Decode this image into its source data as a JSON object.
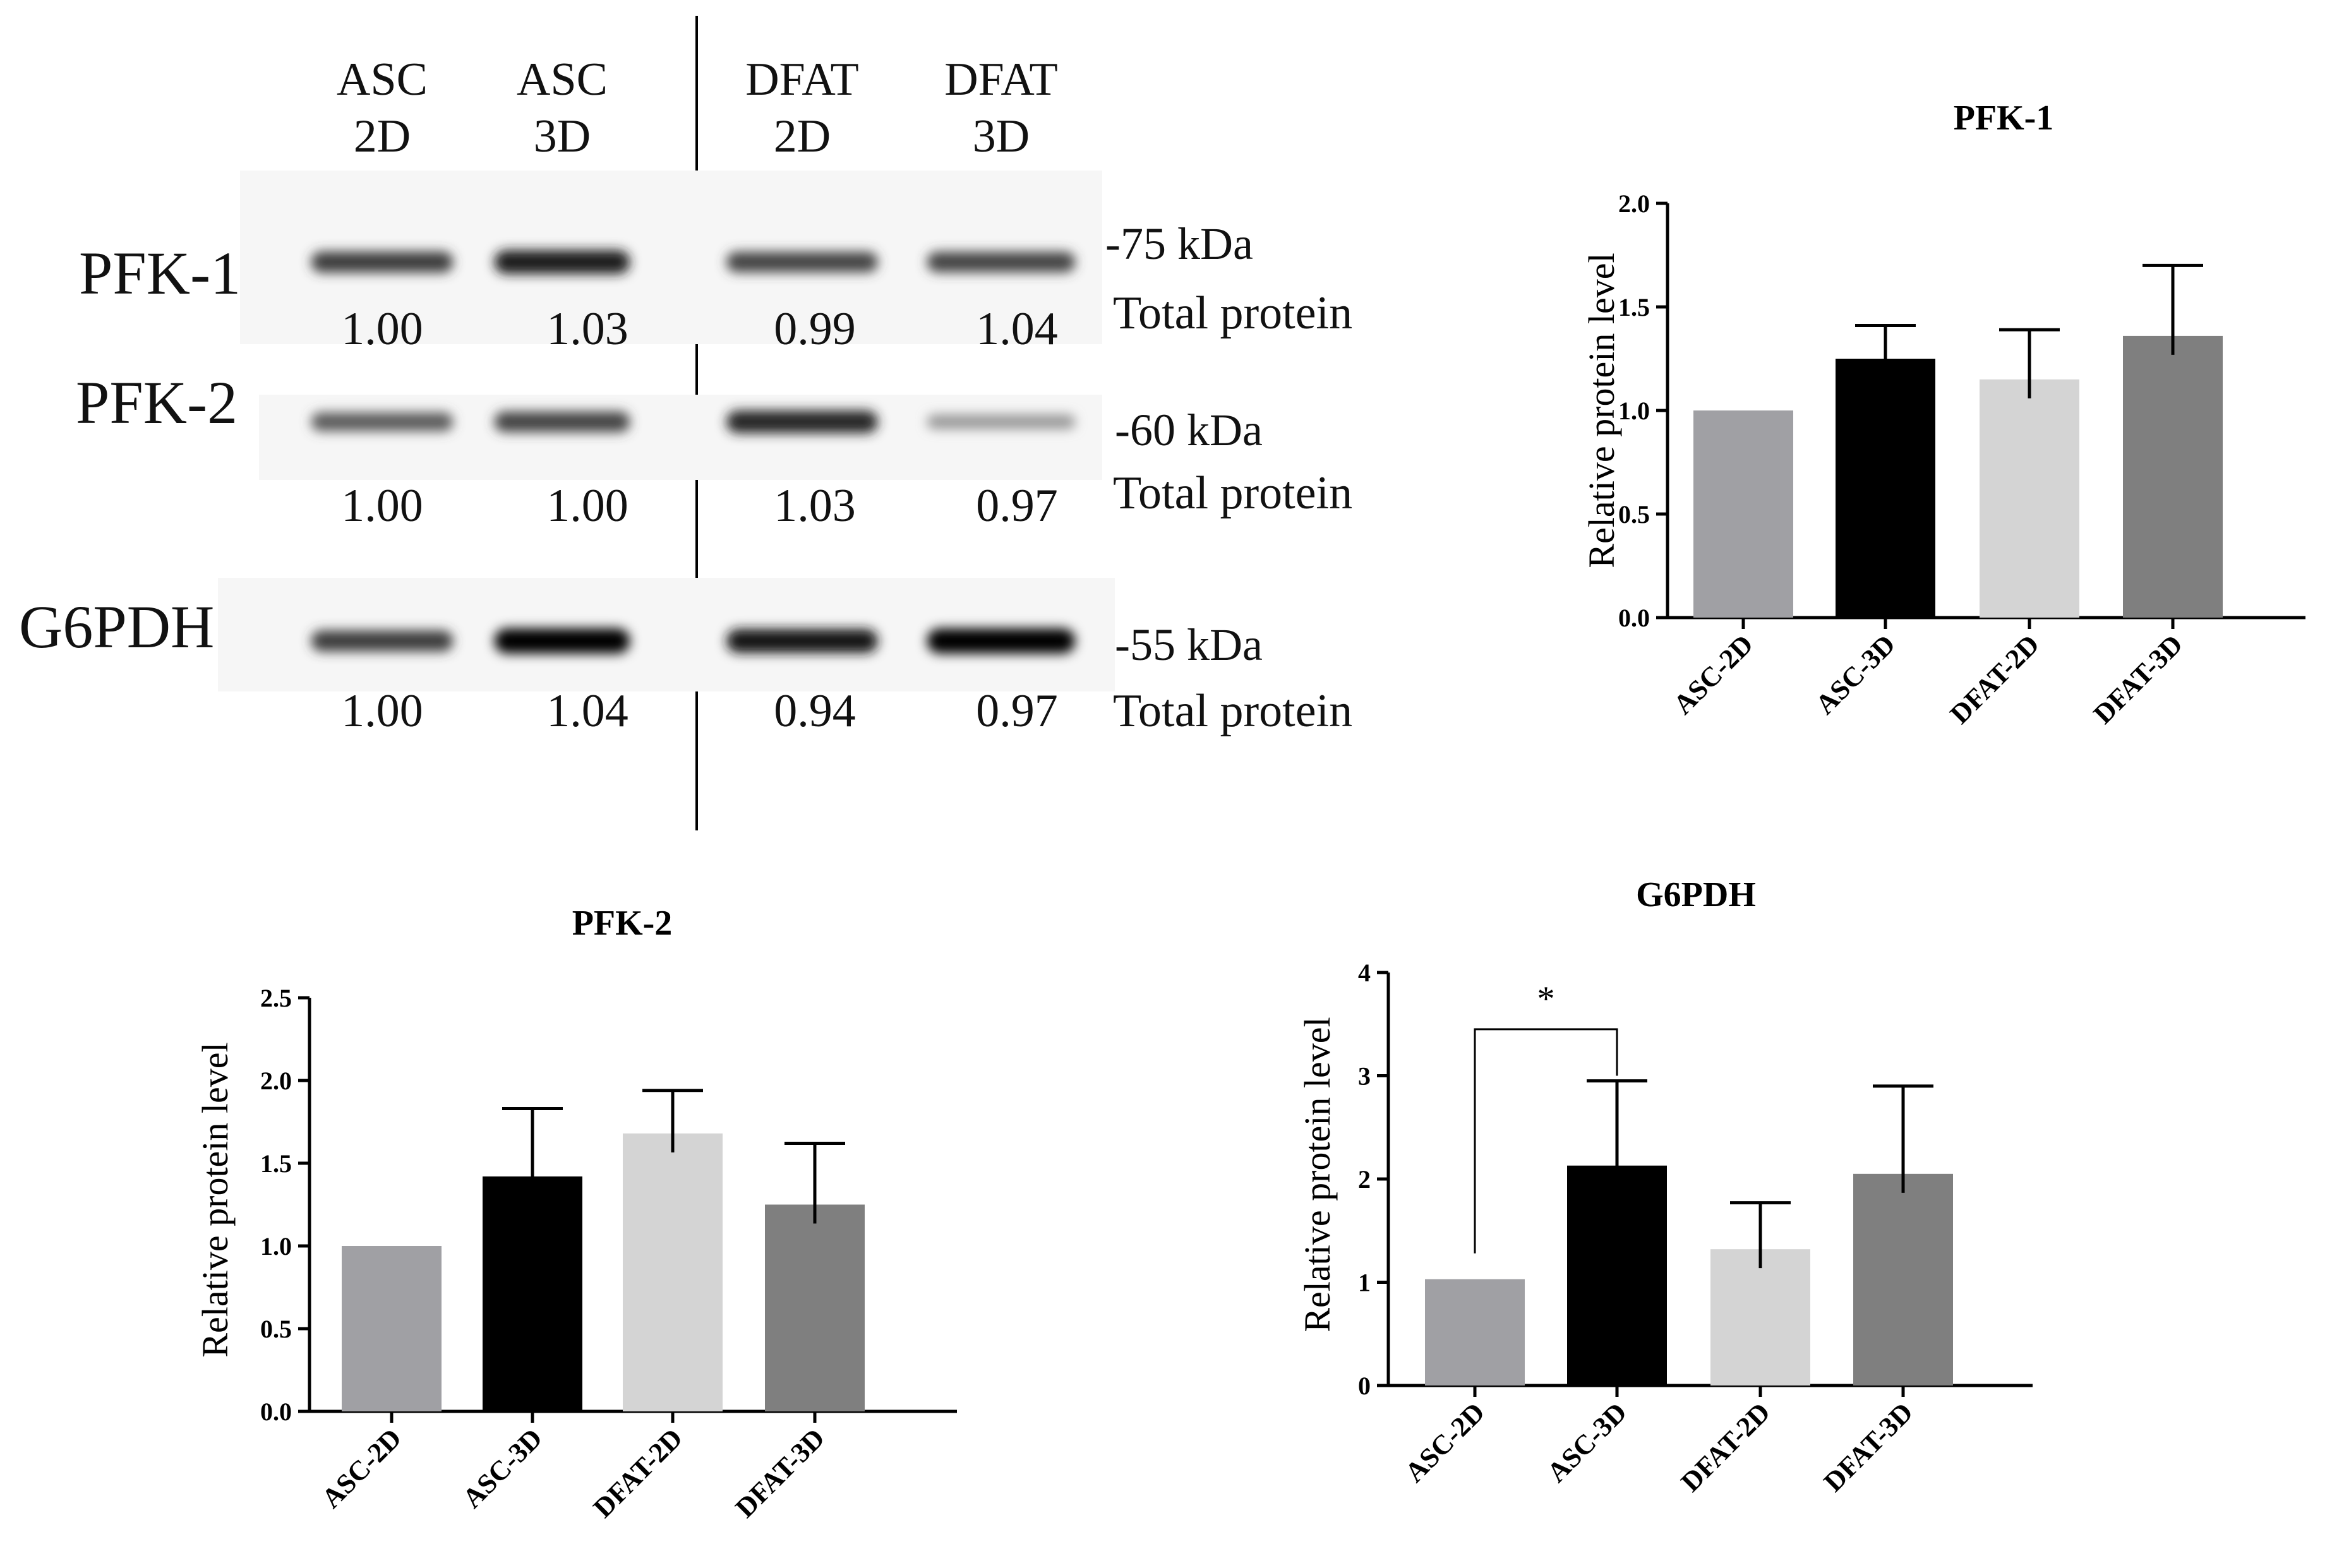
{
  "blot": {
    "lanes": [
      {
        "line1": "ASC",
        "line2": "2D"
      },
      {
        "line1": "ASC",
        "line2": "3D"
      },
      {
        "line1": "DFAT",
        "line2": "2D"
      },
      {
        "line1": "DFAT",
        "line2": "3D"
      }
    ],
    "rows": [
      {
        "label": "PFK-1",
        "marker": "-75 kDa",
        "total": "Total protein",
        "values": [
          "1.00",
          "1.03",
          "0.99",
          "1.04"
        ],
        "intensity": [
          0.75,
          0.9,
          0.72,
          0.72
        ]
      },
      {
        "label": "PFK-2",
        "marker": "-60 kDa",
        "total": "Total protein",
        "values": [
          "1.00",
          "1.00",
          "1.03",
          "0.97"
        ],
        "intensity": [
          0.62,
          0.72,
          0.85,
          0.35
        ]
      },
      {
        "label": "G6PDH",
        "marker": "-55 kDa",
        "total": "Total protein",
        "values": [
          "1.00",
          "1.04",
          "0.94",
          "0.97"
        ],
        "intensity": [
          0.75,
          1.0,
          0.92,
          1.0
        ]
      }
    ]
  },
  "chart_data": [
    {
      "type": "bar",
      "title": "PFK-1",
      "ylabel": "Relative protein level",
      "xlabel": "",
      "categories": [
        "ASC-2D",
        "ASC-3D",
        "DFAT-2D",
        "DFAT-3D"
      ],
      "values": [
        1.0,
        1.25,
        1.15,
        1.36
      ],
      "errors": [
        0,
        0.16,
        0.24,
        0.34
      ],
      "colors": [
        "#a0a0a4",
        "#000000",
        "#d4d4d4",
        "#7f7f7f"
      ],
      "ylim": [
        0,
        2.0
      ],
      "yticks": [
        "0.0",
        "0.5",
        "1.0",
        "1.5",
        "2.0"
      ]
    },
    {
      "type": "bar",
      "title": "PFK-2",
      "ylabel": "Relative protein level",
      "xlabel": "",
      "categories": [
        "ASC-2D",
        "ASC-3D",
        "DFAT-2D",
        "DFAT-3D"
      ],
      "values": [
        1.0,
        1.42,
        1.68,
        1.25
      ],
      "errors": [
        0,
        0.41,
        0.26,
        0.37
      ],
      "colors": [
        "#a0a0a4",
        "#000000",
        "#d4d4d4",
        "#7f7f7f"
      ],
      "ylim": [
        0,
        2.5
      ],
      "yticks": [
        "0.0",
        "0.5",
        "1.0",
        "1.5",
        "2.0",
        "2.5"
      ]
    },
    {
      "type": "bar",
      "title": "G6PDH",
      "ylabel": "Relative protein level",
      "xlabel": "",
      "categories": [
        "ASC-2D",
        "ASC-3D",
        "DFAT-2D",
        "DFAT-3D"
      ],
      "values": [
        1.03,
        2.13,
        1.32,
        2.05
      ],
      "errors": [
        0,
        0.82,
        0.45,
        0.85
      ],
      "colors": [
        "#a0a0a4",
        "#000000",
        "#d4d4d4",
        "#7f7f7f"
      ],
      "ylim": [
        0,
        4
      ],
      "yticks": [
        "0",
        "1",
        "2",
        "3",
        "4"
      ],
      "significance": {
        "from": "ASC-2D",
        "to": "ASC-3D",
        "label": "*",
        "y": 3.45
      }
    }
  ]
}
